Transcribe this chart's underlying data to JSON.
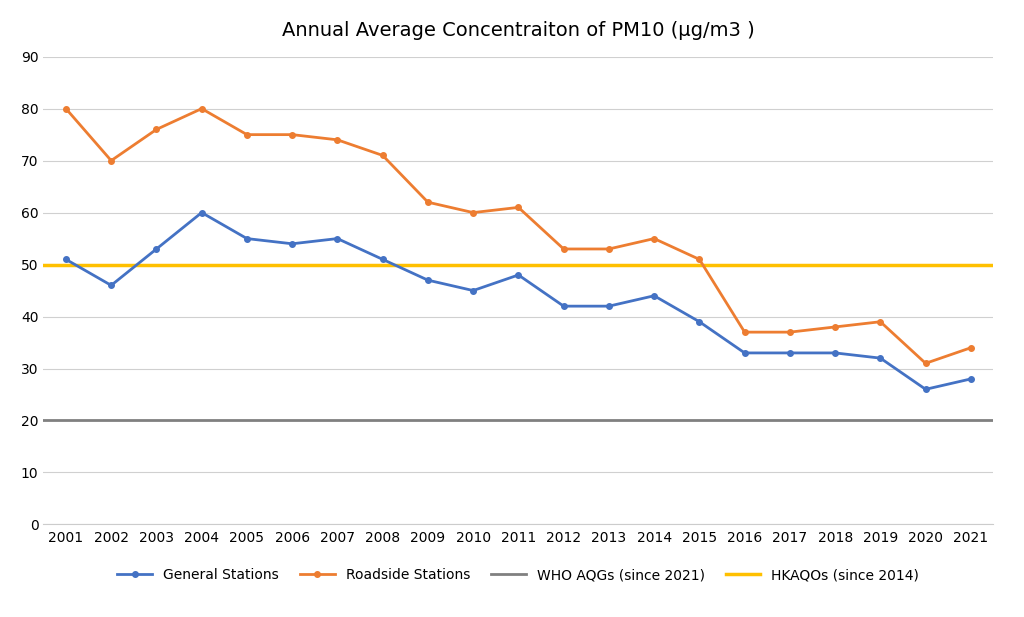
{
  "title": "Annual Average Concentraiton of PM10 (μg/m3 )",
  "years": [
    2001,
    2002,
    2003,
    2004,
    2005,
    2006,
    2007,
    2008,
    2009,
    2010,
    2011,
    2012,
    2013,
    2014,
    2015,
    2016,
    2017,
    2018,
    2019,
    2020,
    2021
  ],
  "general_stations": [
    51,
    46,
    53,
    60,
    55,
    54,
    55,
    51,
    47,
    45,
    48,
    42,
    42,
    44,
    39,
    33,
    33,
    33,
    32,
    26,
    28
  ],
  "roadside_stations": [
    80,
    70,
    76,
    80,
    75,
    75,
    74,
    71,
    62,
    60,
    61,
    53,
    53,
    55,
    51,
    37,
    37,
    38,
    39,
    31,
    34
  ],
  "who_aqg_value": 20,
  "hkaqo_value": 50,
  "who_aqg_label": "WHO AQGs (since 2021)",
  "hkaqo_label": "HKAQOs (since 2014)",
  "general_label": "General Stations",
  "roadside_label": "Roadside Stations",
  "general_color": "#4472C4",
  "roadside_color": "#ED7D31",
  "who_color": "#808080",
  "hkaqo_color": "#FFC000",
  "ylim": [
    0,
    90
  ],
  "yticks": [
    0,
    10,
    20,
    30,
    40,
    50,
    60,
    70,
    80,
    90
  ],
  "background_color": "#FFFFFF",
  "grid_color": "#D0D0D0",
  "title_fontsize": 14,
  "tick_fontsize": 10,
  "legend_fontsize": 10,
  "line_width": 2.0,
  "marker": "o",
  "marker_size": 4
}
